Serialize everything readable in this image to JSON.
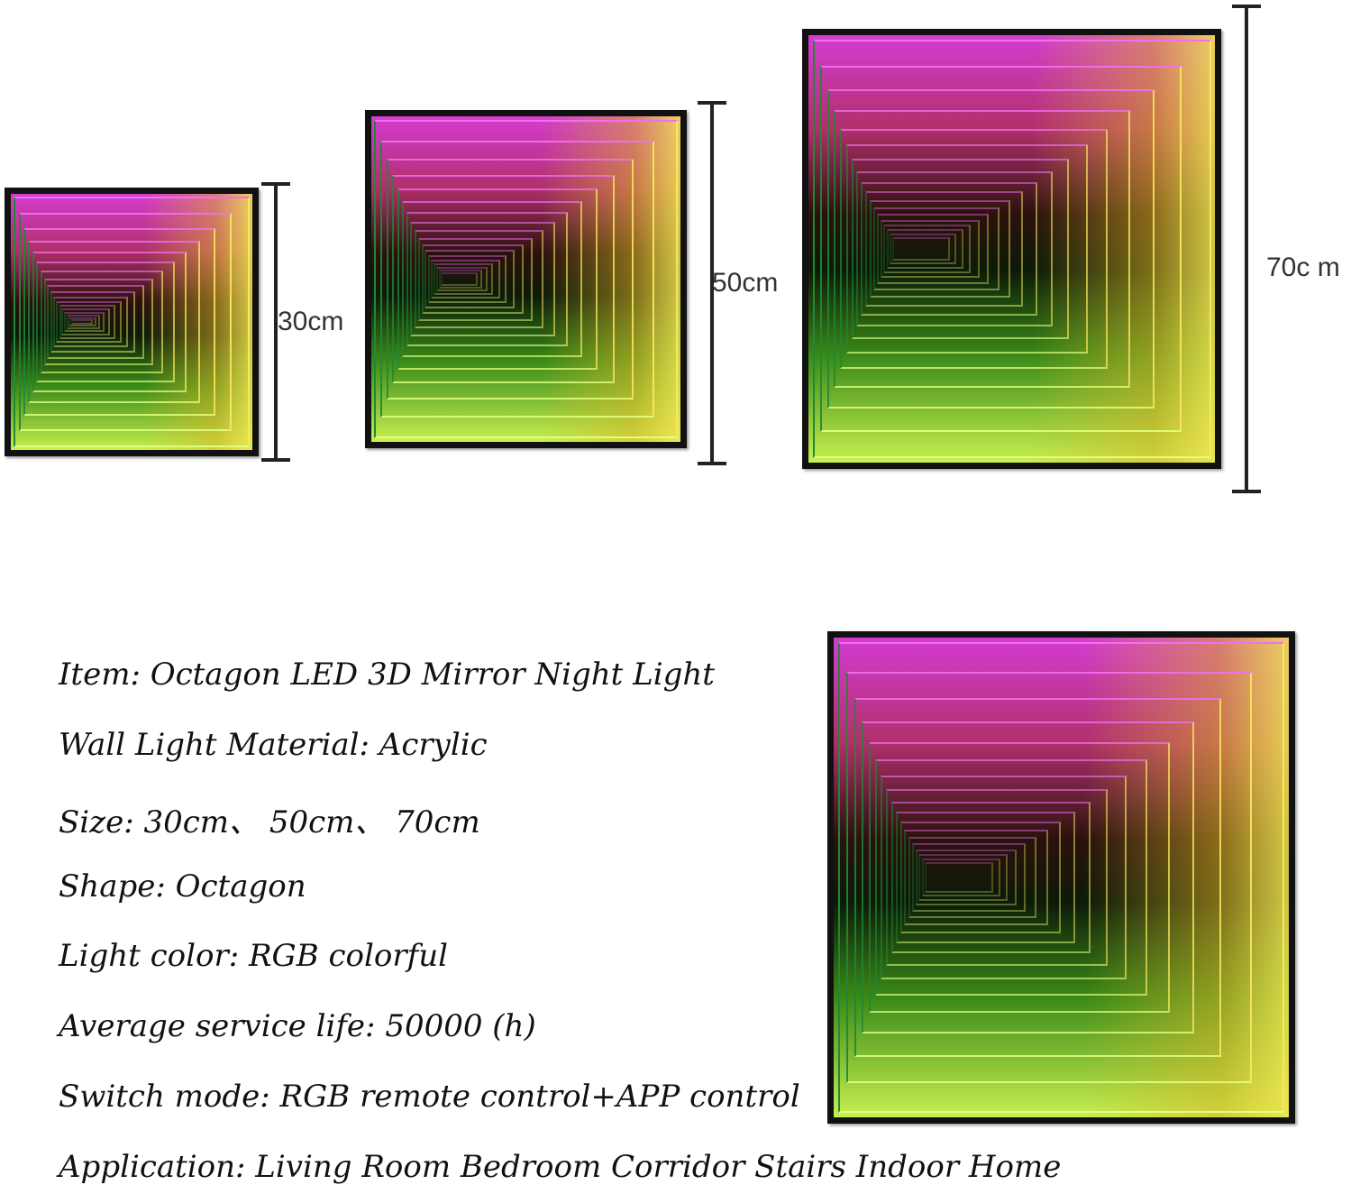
{
  "dimensions": {
    "small": "30cm",
    "medium": "50cm",
    "large": "70c m"
  },
  "specs": [
    "Item: Octagon LED 3D Mirror Night Light",
    "Wall Light Material: Acrylic",
    "Size: 30cm、 50cm、 70cm",
    "Shape: Octagon",
    "Light color: RGB colorful",
    "Average service life: 50000 (h)",
    "Switch mode: RGB remote control+APP control",
    "Application: Living Room Bedroom Corridor Stairs Indoor Home"
  ],
  "colors": {
    "top_glow": "#f070f0",
    "right_glow": "#f8e860",
    "bottom_glow": "#e0ff80",
    "left_glow": "#208838",
    "frame": "#111111"
  }
}
